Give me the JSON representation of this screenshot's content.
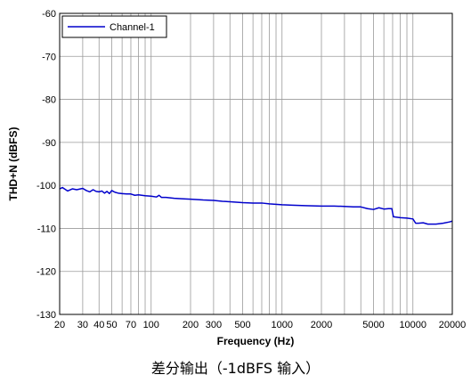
{
  "chart_data": {
    "type": "line",
    "xscale": "log",
    "xlim": [
      20,
      20000
    ],
    "ylim": [
      -130,
      -60
    ],
    "xlabel": "Frequency (Hz)",
    "ylabel": "THD+N (dBFS)",
    "grid": true,
    "legend_position": "top-left",
    "x_ticks": [
      20,
      30,
      40,
      50,
      70,
      100,
      200,
      300,
      500,
      1000,
      2000,
      5000,
      10000,
      20000
    ],
    "x_tick_labels": [
      "20",
      "30",
      "40",
      "50",
      "70",
      "100",
      "200",
      "300",
      "500",
      "1000",
      "2000",
      "5000",
      "10000",
      "20000"
    ],
    "y_ticks": [
      -60,
      -70,
      -80,
      -90,
      -100,
      -110,
      -120,
      -130
    ],
    "y_tick_labels": [
      "-60",
      "-70",
      "-80",
      "-90",
      "-100",
      "-110",
      "-120",
      "-130"
    ],
    "series": [
      {
        "name": "Channel-1",
        "color": "#0000cc",
        "x": [
          20,
          21,
          22,
          23,
          25,
          27,
          30,
          32,
          34,
          36,
          38,
          40,
          42,
          44,
          46,
          48,
          50,
          53,
          56,
          60,
          65,
          70,
          75,
          80,
          90,
          100,
          110,
          115,
          120,
          130,
          150,
          170,
          200,
          250,
          300,
          350,
          400,
          500,
          600,
          700,
          800,
          1000,
          1200,
          1500,
          2000,
          2500,
          3000,
          3500,
          4000,
          4500,
          5000,
          5500,
          6000,
          6500,
          6900,
          7100,
          8000,
          9000,
          10000,
          10500,
          11000,
          12000,
          13000,
          15000,
          17000,
          19000,
          20000
        ],
        "y": [
          -100.8,
          -100.5,
          -100.9,
          -101.3,
          -100.8,
          -101.0,
          -100.7,
          -101.2,
          -101.5,
          -101.0,
          -101.4,
          -101.5,
          -101.3,
          -101.8,
          -101.4,
          -101.9,
          -101.2,
          -101.6,
          -101.8,
          -101.9,
          -102.0,
          -102.0,
          -102.3,
          -102.2,
          -102.4,
          -102.5,
          -102.7,
          -102.3,
          -102.8,
          -102.8,
          -103.0,
          -103.1,
          -103.2,
          -103.4,
          -103.5,
          -103.7,
          -103.8,
          -104.0,
          -104.1,
          -104.1,
          -104.3,
          -104.5,
          -104.6,
          -104.7,
          -104.8,
          -104.8,
          -104.9,
          -105.0,
          -105.0,
          -105.4,
          -105.6,
          -105.2,
          -105.5,
          -105.4,
          -105.4,
          -107.3,
          -107.5,
          -107.6,
          -107.8,
          -108.8,
          -108.8,
          -108.7,
          -109.0,
          -109.0,
          -108.8,
          -108.5,
          -108.3
        ]
      }
    ]
  },
  "caption": "差分输出（-1dBFS 输入）"
}
